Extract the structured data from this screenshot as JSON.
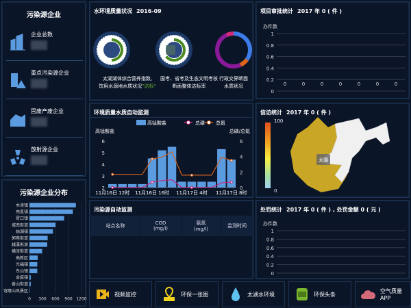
{
  "enterprise": {
    "title": "污染源企业",
    "items": [
      {
        "label": "企业总数",
        "icon": "building-icon"
      },
      {
        "label": "重点污染源企业",
        "icon": "warning-building-icon"
      },
      {
        "label": "固废产废企业",
        "icon": "factory-icon"
      },
      {
        "label": "放射源企业",
        "icon": "radiation-icon"
      }
    ]
  },
  "distribution": {
    "title": "污染源企业分布",
    "chart_data": {
      "type": "bar",
      "orientation": "horizontal",
      "categories": [
        "木渎镇",
        "甪直镇",
        "胥口镇",
        "城南街道",
        "临湖镇",
        "郭巷街道",
        "越溪街道",
        "横泾街道",
        "高新区",
        "光福镇",
        "东山镇",
        "金庭镇",
        "香山街道",
        "穹窿山风景区"
      ],
      "values": [
        1070,
        1000,
        800,
        600,
        540,
        420,
        410,
        290,
        190,
        180,
        180,
        30,
        30,
        5
      ],
      "xlim": [
        0,
        1200
      ],
      "xticks": [
        "0",
        "300",
        "600",
        "900",
        "1200"
      ],
      "color": "#5b9be0"
    }
  },
  "water_env": {
    "title": "水环境质量状况",
    "period": "2016-09",
    "gauges": [
      {
        "line1": "太湖湖体综合营养指数,",
        "line2": "饮用水源地水质状况",
        "status": "\"达标\"",
        "status_color": "#6ab02e"
      },
      {
        "line1": "国考、省考及生态文明考核",
        "line2": "断面整体达标率"
      },
      {
        "line1": "行政交界断面",
        "line2": "水质状况",
        "segments": [
          {
            "value": 35,
            "color": "#3d7be8"
          },
          {
            "value": 8,
            "color": "#e0641c"
          },
          {
            "value": 50,
            "color": "#8a1a9a"
          },
          {
            "value": 7,
            "color": "#d42a7a"
          }
        ]
      }
    ]
  },
  "auto_monitor": {
    "title": "环境质量水质自动监测",
    "chart_data": {
      "type": "bar+line",
      "legend": [
        "高锰酸盐",
        "总磷",
        "总氮"
      ],
      "ylabel_left": "高锰酸盐",
      "ylabel_right": "总磷/总氮",
      "ylim_left": [
        2,
        6
      ],
      "ylim_right": [
        0,
        6
      ],
      "yticks_left": [
        "2",
        "3",
        "4",
        "5",
        "6"
      ],
      "yticks_right": [
        "0",
        "2",
        "4",
        "6"
      ],
      "xticks": [
        "11月16日 12时",
        "11月16日 16时",
        "11月17日 4时",
        "11月17日 8时"
      ],
      "series": [
        {
          "name": "高锰酸盐",
          "type": "bar",
          "color": "#5b9be0",
          "values": [
            2.3,
            2.3,
            2.3,
            2.3,
            4.5,
            5.2,
            5.5,
            2.5,
            2.5,
            2.5,
            2.5,
            5.3,
            4.4
          ]
        },
        {
          "name": "总磷",
          "type": "line",
          "color": "#c8287a",
          "values": [
            0,
            0,
            0,
            0,
            0.7,
            0.9,
            1.0,
            0,
            0,
            0,
            0,
            0.6,
            0.7
          ]
        },
        {
          "name": "总氮",
          "type": "line",
          "color": "#d0601c",
          "values": [
            1.7,
            1.7,
            1.7,
            1.7,
            3.7,
            3.9,
            4.6,
            1.6,
            1.6,
            1.6,
            1.6,
            3.9,
            3.5
          ]
        }
      ]
    }
  },
  "pollution_monitor": {
    "title": "污染源自动监测",
    "columns": [
      {
        "l1": "站点名称",
        "l2": ""
      },
      {
        "l1": "COD",
        "l2": "(mg/l)"
      },
      {
        "l1": "氨氮",
        "l2": "(mg/l)"
      },
      {
        "l1": "监测时间",
        "l2": ""
      }
    ]
  },
  "approval": {
    "title": "项目审批统计",
    "summary": "2017 年 0 ( 件 )",
    "chart_data": {
      "type": "bar",
      "ylabel": "办件数",
      "ylim": [
        0,
        1
      ],
      "yticks": [
        "1",
        "0.8",
        "0.6",
        "0.4",
        "0.2",
        "0"
      ],
      "values": [
        0,
        0,
        0,
        0,
        0,
        0,
        0
      ]
    }
  },
  "petition": {
    "title": "信访统计",
    "summary": "2017 年 0 ( 件 )",
    "scale_max": "100",
    "scale_min": "0",
    "lake_label": "太湖"
  },
  "penalty": {
    "title": "处罚统计",
    "summary": "2017 年 0 ( 件 ) , 处罚金额 0 ( 元 )",
    "chart_data": {
      "type": "bar",
      "ylabel": "办件数",
      "ylim": [
        0,
        1
      ],
      "yticks": [
        "1",
        "0.8",
        "0.6",
        "0.4",
        "0.2",
        "0"
      ],
      "values": []
    }
  },
  "shortcuts": [
    {
      "label": "视频监控",
      "icon": "video-icon",
      "color": "#e8b21c"
    },
    {
      "label": "环保一张图",
      "icon": "map-pin-icon",
      "color": "#f0d21c"
    },
    {
      "label": "太湖水环境",
      "icon": "water-drop-icon",
      "color": "#5fc3f0"
    },
    {
      "label": "环保头条",
      "icon": "news-icon",
      "color": "#7ab52e"
    },
    {
      "label": "空气质量APP",
      "icon": "cloud-icon",
      "color": "#d46a78"
    }
  ]
}
